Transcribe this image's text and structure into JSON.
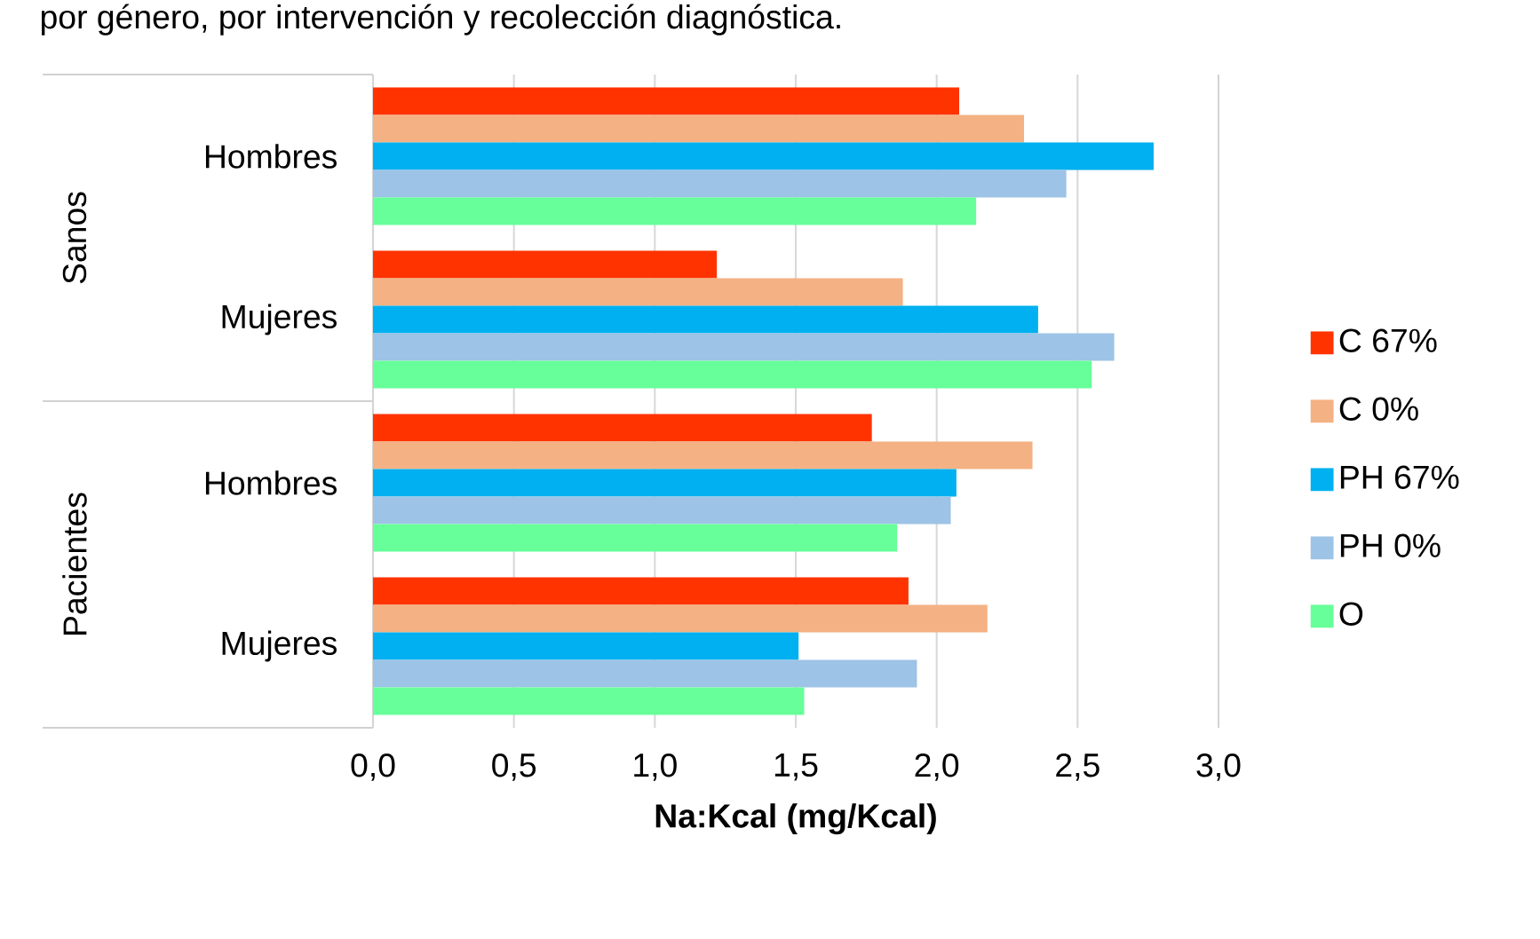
{
  "chart_data": {
    "type": "bar",
    "orientation": "horizontal",
    "title": "por género, por intervención y recolección diagnóstica.",
    "xlabel": "Na:Kcal (mg/Kcal)",
    "categories": [
      "Hombres",
      "Mujeres",
      "Hombres",
      "Mujeres"
    ],
    "annotations": [
      "Sanos",
      "Pacientes"
    ],
    "series": [
      {
        "name": "C 67%",
        "color": "#ff3300",
        "values": [
          2.08,
          1.22,
          1.77,
          1.9
        ]
      },
      {
        "name": "C 0%",
        "color": "#f4b183",
        "values": [
          2.31,
          1.88,
          2.34,
          2.18
        ]
      },
      {
        "name": "PH 67%",
        "color": "#00b0f0",
        "values": [
          2.77,
          2.36,
          2.07,
          1.51
        ]
      },
      {
        "name": "PH 0%",
        "color": "#9dc3e6",
        "values": [
          2.46,
          2.63,
          2.05,
          1.93
        ]
      },
      {
        "name": "O",
        "color": "#66ff99",
        "values": [
          2.14,
          2.55,
          1.86,
          1.53
        ]
      }
    ],
    "xlim": [
      0,
      3
    ],
    "xticks": [
      {
        "value": 0,
        "label": "0,0"
      },
      {
        "value": 0.5,
        "label": "0,5"
      },
      {
        "value": 1,
        "label": "1,0"
      },
      {
        "value": 1.5,
        "label": "1,5"
      },
      {
        "value": 2,
        "label": "2,0"
      },
      {
        "value": 2.5,
        "label": "2,5"
      },
      {
        "value": 3,
        "label": "3,0"
      }
    ],
    "grid": "x",
    "legend": "right"
  }
}
